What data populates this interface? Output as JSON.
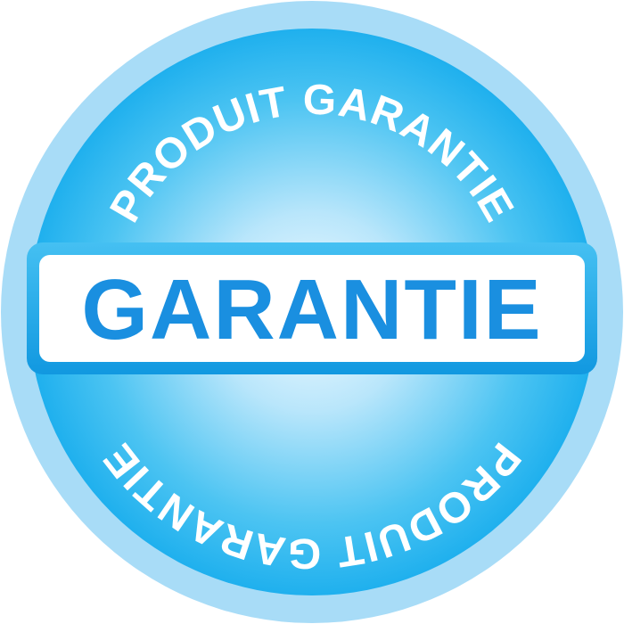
{
  "badge": {
    "main_label": "GARANTIE",
    "top_arc_text": "PRODUIT GARANTIE",
    "bottom_arc_text": "PRODUIT GARANTIE"
  },
  "colors": {
    "outer_ring": "#a8dcf7",
    "disc_edge": "#1fb2ef",
    "disc_center": "#e6f7ff",
    "banner_border": "#1aa3e6",
    "banner_fill": "#ffffff",
    "main_text": "#1a8fe0",
    "arc_text": "#ffffff"
  }
}
